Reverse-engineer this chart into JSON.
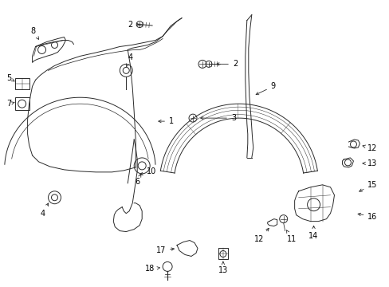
{
  "background_color": "#ffffff",
  "line_color": "#2a2a2a",
  "label_color": "#000000",
  "figsize": [
    4.89,
    3.6
  ],
  "dpi": 100,
  "label_fontsize": 7.0
}
